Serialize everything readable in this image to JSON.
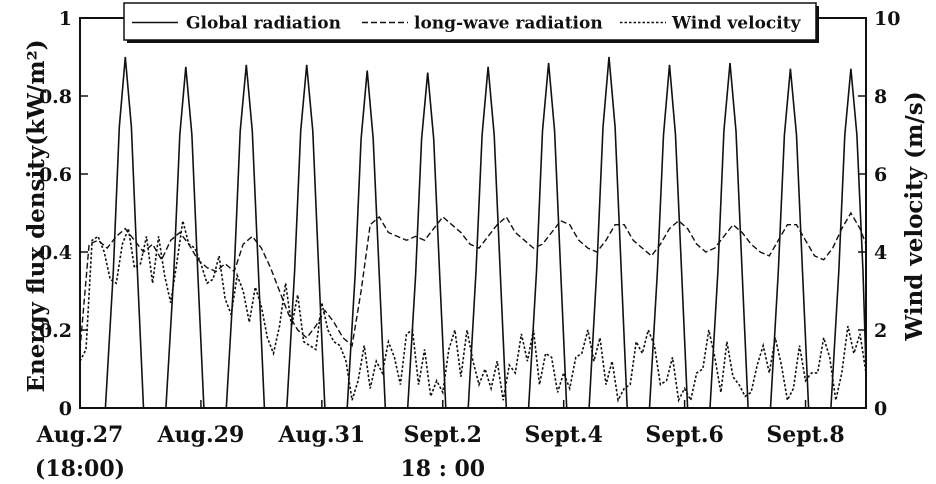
{
  "chart_data": {
    "type": "line",
    "title": "",
    "y_left": {
      "label": "Energy flux density(kW/m²)",
      "range": [
        0,
        1
      ],
      "ticks": [
        0,
        0.2,
        0.4,
        0.6,
        0.8,
        1
      ],
      "tick_labels": [
        "0",
        "0.2",
        "0.4",
        "0.6",
        "0.8",
        "1"
      ]
    },
    "y_right": {
      "label": "Wind velocity (m/s)",
      "range": [
        0,
        10
      ],
      "ticks": [
        0,
        2,
        4,
        6,
        8,
        10
      ],
      "tick_labels": [
        "0",
        "2",
        "4",
        "6",
        "8",
        "10"
      ]
    },
    "x_axis": {
      "range": [
        0,
        13
      ],
      "ticks": [
        0,
        2,
        4,
        6,
        8,
        10,
        12
      ],
      "tick_labels": [
        "Aug.27",
        "Aug.29",
        "Aug.31",
        "Sept.2",
        "Sept.4",
        "Sept.6",
        "Sept.8"
      ],
      "sub_labels": [
        {
          "at": 0,
          "text": "(18:00)"
        },
        {
          "at": 6,
          "text": "18 : 00"
        }
      ]
    },
    "legend_position": "top-center",
    "series": [
      {
        "name": "Global radiation",
        "axis": "left",
        "style": "solid",
        "x": [
          0,
          0.42,
          0.55,
          0.65,
          0.75,
          0.85,
          0.95,
          1.05,
          1.25,
          1.42,
          1.55,
          1.65,
          1.75,
          1.85,
          1.95,
          2.05,
          2.25,
          2.42,
          2.55,
          2.65,
          2.75,
          2.85,
          2.95,
          3.05,
          3.25,
          3.42,
          3.55,
          3.65,
          3.75,
          3.85,
          3.95,
          4.05,
          4.25,
          4.42,
          4.55,
          4.65,
          4.75,
          4.85,
          4.95,
          5.05,
          5.25,
          5.42,
          5.55,
          5.65,
          5.75,
          5.85,
          5.95,
          6.05,
          6.25,
          6.42,
          6.55,
          6.65,
          6.75,
          6.85,
          6.95,
          7.05,
          7.25,
          7.42,
          7.55,
          7.65,
          7.75,
          7.85,
          7.95,
          8.05,
          8.25,
          8.42,
          8.55,
          8.65,
          8.75,
          8.85,
          8.95,
          9.05,
          9.25,
          9.42,
          9.55,
          9.65,
          9.75,
          9.85,
          9.95,
          10.05,
          10.25,
          10.42,
          10.55,
          10.65,
          10.75,
          10.85,
          10.95,
          11.05,
          11.25,
          11.42,
          11.55,
          11.65,
          11.75,
          11.85,
          11.95,
          12.05,
          12.25,
          12.42,
          12.55,
          12.65,
          12.75,
          12.85,
          12.95,
          13.0
        ],
        "values": [
          0,
          0,
          0.35,
          0.72,
          0.9,
          0.72,
          0.35,
          0,
          0,
          0,
          0.34,
          0.7,
          0.875,
          0.7,
          0.34,
          0,
          0,
          0,
          0.35,
          0.71,
          0.88,
          0.71,
          0.35,
          0,
          0,
          0,
          0.35,
          0.71,
          0.88,
          0.71,
          0.35,
          0,
          0,
          0,
          0.34,
          0.69,
          0.865,
          0.69,
          0.34,
          0,
          0,
          0,
          0.34,
          0.69,
          0.86,
          0.69,
          0.34,
          0,
          0,
          0,
          0.35,
          0.7,
          0.875,
          0.7,
          0.35,
          0,
          0,
          0,
          0.35,
          0.71,
          0.885,
          0.71,
          0.35,
          0,
          0,
          0,
          0.36,
          0.72,
          0.9,
          0.72,
          0.36,
          0,
          0,
          0,
          0.35,
          0.7,
          0.88,
          0.7,
          0.35,
          0,
          0,
          0,
          0.35,
          0.71,
          0.885,
          0.71,
          0.35,
          0,
          0,
          0,
          0.35,
          0.7,
          0.87,
          0.7,
          0.35,
          0,
          0,
          0,
          0.35,
          0.7,
          0.87,
          0.7,
          0.35,
          0.1
        ]
      },
      {
        "name": "long-wave radiation",
        "axis": "left",
        "style": "dashed",
        "x": [
          0,
          0.15,
          0.3,
          0.45,
          0.6,
          0.75,
          0.9,
          1.05,
          1.2,
          1.35,
          1.5,
          1.65,
          1.8,
          1.95,
          2.1,
          2.25,
          2.4,
          2.55,
          2.7,
          2.85,
          3.0,
          3.15,
          3.3,
          3.45,
          3.6,
          3.75,
          3.9,
          4.05,
          4.2,
          4.35,
          4.5,
          4.65,
          4.8,
          4.95,
          5.1,
          5.25,
          5.4,
          5.55,
          5.7,
          5.85,
          6.0,
          6.15,
          6.3,
          6.45,
          6.6,
          6.75,
          6.9,
          7.05,
          7.2,
          7.35,
          7.5,
          7.65,
          7.8,
          7.95,
          8.1,
          8.25,
          8.4,
          8.55,
          8.7,
          8.85,
          9.0,
          9.15,
          9.3,
          9.45,
          9.6,
          9.75,
          9.9,
          10.05,
          10.2,
          10.35,
          10.5,
          10.65,
          10.8,
          10.95,
          11.1,
          11.25,
          11.4,
          11.55,
          11.7,
          11.85,
          12.0,
          12.15,
          12.3,
          12.45,
          12.6,
          12.75,
          12.9,
          13.0
        ],
        "values": [
          0.15,
          0.42,
          0.43,
          0.41,
          0.44,
          0.46,
          0.43,
          0.4,
          0.42,
          0.38,
          0.43,
          0.45,
          0.42,
          0.38,
          0.36,
          0.35,
          0.37,
          0.35,
          0.42,
          0.44,
          0.41,
          0.36,
          0.3,
          0.24,
          0.2,
          0.18,
          0.21,
          0.25,
          0.22,
          0.18,
          0.16,
          0.3,
          0.47,
          0.49,
          0.45,
          0.44,
          0.43,
          0.44,
          0.43,
          0.46,
          0.49,
          0.47,
          0.45,
          0.42,
          0.41,
          0.44,
          0.47,
          0.49,
          0.45,
          0.43,
          0.41,
          0.42,
          0.45,
          0.48,
          0.47,
          0.43,
          0.41,
          0.4,
          0.43,
          0.47,
          0.47,
          0.43,
          0.41,
          0.39,
          0.42,
          0.46,
          0.48,
          0.46,
          0.42,
          0.4,
          0.41,
          0.44,
          0.47,
          0.45,
          0.42,
          0.4,
          0.39,
          0.43,
          0.47,
          0.47,
          0.43,
          0.39,
          0.38,
          0.41,
          0.46,
          0.5,
          0.46,
          0.42
        ]
      },
      {
        "name": "Wind velocity",
        "axis": "right",
        "style": "dotted",
        "x": [
          0,
          0.1,
          0.2,
          0.3,
          0.4,
          0.5,
          0.6,
          0.7,
          0.8,
          0.9,
          1.0,
          1.1,
          1.2,
          1.3,
          1.4,
          1.5,
          1.6,
          1.7,
          1.8,
          1.9,
          2.0,
          2.1,
          2.2,
          2.3,
          2.4,
          2.5,
          2.6,
          2.7,
          2.8,
          2.9,
          3.0,
          3.1,
          3.2,
          3.3,
          3.4,
          3.5,
          3.6,
          3.7,
          3.8,
          3.9,
          4.0,
          4.1,
          4.2,
          4.3,
          4.4,
          4.5,
          4.6,
          4.7,
          4.8,
          4.9,
          5.0,
          5.1,
          5.2,
          5.3,
          5.4,
          5.5,
          5.6,
          5.7,
          5.8,
          5.9,
          6.0,
          6.1,
          6.2,
          6.3,
          6.4,
          6.5,
          6.6,
          6.7,
          6.8,
          6.9,
          7.0,
          7.1,
          7.2,
          7.3,
          7.4,
          7.5,
          7.6,
          7.7,
          7.8,
          7.9,
          8.0,
          8.1,
          8.2,
          8.3,
          8.4,
          8.5,
          8.6,
          8.7,
          8.8,
          8.9,
          9.0,
          9.1,
          9.2,
          9.3,
          9.4,
          9.5,
          9.6,
          9.7,
          9.8,
          9.9,
          10.0,
          10.1,
          10.2,
          10.3,
          10.4,
          10.5,
          10.6,
          10.7,
          10.8,
          10.9,
          11.0,
          11.1,
          11.2,
          11.3,
          11.4,
          11.5,
          11.6,
          11.7,
          11.8,
          11.9,
          12.0,
          12.1,
          12.2,
          12.3,
          12.4,
          12.5,
          12.6,
          12.7,
          12.8,
          12.9,
          13.0
        ],
        "values": [
          1.2,
          1.5,
          4.3,
          4.4,
          4.0,
          3.3,
          3.2,
          4.2,
          4.6,
          3.6,
          3.7,
          4.4,
          3.2,
          4.4,
          3.4,
          2.7,
          3.7,
          4.8,
          4.2,
          4.1,
          3.7,
          3.2,
          3.3,
          3.9,
          2.8,
          2.4,
          3.4,
          3.0,
          2.2,
          3.1,
          2.6,
          1.8,
          1.4,
          2.1,
          3.2,
          2.1,
          2.9,
          1.7,
          1.6,
          1.5,
          2.7,
          2.0,
          1.7,
          1.6,
          1.2,
          0.2,
          0.7,
          1.6,
          0.5,
          1.2,
          0.9,
          1.7,
          1.3,
          0.6,
          1.9,
          2.0,
          0.6,
          1.5,
          0.3,
          0.7,
          0.4,
          1.5,
          2.0,
          0.8,
          2.0,
          1.2,
          0.6,
          1.0,
          0.5,
          1.2,
          0.2,
          1.1,
          0.9,
          1.9,
          1.2,
          2.0,
          0.6,
          1.4,
          1.3,
          0.4,
          0.9,
          0.5,
          1.3,
          1.4,
          2.0,
          1.2,
          1.8,
          0.6,
          1.2,
          0.2,
          0.5,
          0.6,
          1.7,
          1.4,
          2.0,
          1.6,
          0.6,
          0.7,
          1.3,
          0.2,
          0.5,
          0.2,
          0.9,
          1.0,
          2.0,
          1.3,
          0.4,
          1.7,
          0.8,
          0.6,
          0.3,
          0.4,
          1.1,
          1.6,
          0.9,
          1.8,
          1.1,
          0.2,
          0.5,
          1.6,
          0.7,
          0.9,
          0.9,
          1.8,
          1.3,
          0.2,
          0.9,
          2.1,
          1.4,
          1.9,
          0.9
        ]
      }
    ]
  }
}
